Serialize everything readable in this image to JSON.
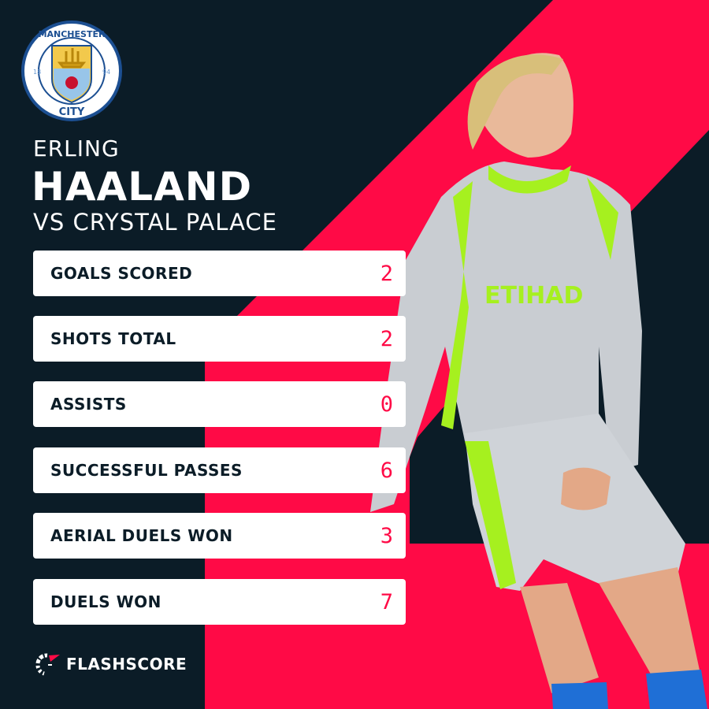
{
  "colors": {
    "background": "#0b1c27",
    "accent": "#ff0a46",
    "card": "#ffffff"
  },
  "crest": {
    "top": "MANCHESTER",
    "bottom": "CITY",
    "left": "18",
    "right": "94"
  },
  "header": {
    "first_name": "ERLING",
    "last_name": "HAALAND",
    "opponent": "VS CRYSTAL PALACE"
  },
  "stats": [
    {
      "label": "GOALS SCORED",
      "value": "2"
    },
    {
      "label": "SHOTS TOTAL",
      "value": "2"
    },
    {
      "label": "ASSISTS",
      "value": "0"
    },
    {
      "label": "SUCCESSFUL PASSES",
      "value": "6"
    },
    {
      "label": "AERIAL DUELS WON",
      "value": "3"
    },
    {
      "label": "DUELS WON",
      "value": "7"
    }
  ],
  "footer": {
    "brand": "FLASHSCORE"
  }
}
